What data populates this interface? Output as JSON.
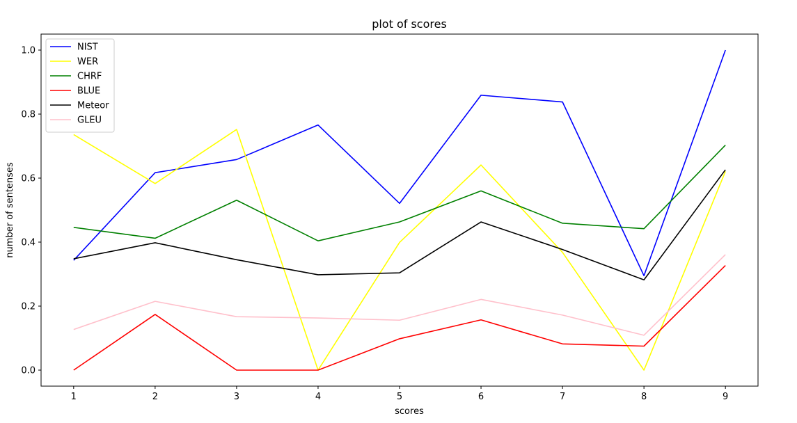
{
  "chart_data": {
    "type": "line",
    "title": "plot of scores",
    "xlabel": "scores",
    "ylabel": "number of sentenses",
    "x": [
      1,
      2,
      3,
      4,
      5,
      6,
      7,
      8,
      9
    ],
    "xlim": [
      0.6,
      9.4
    ],
    "ylim": [
      -0.05,
      1.05
    ],
    "xticks": [
      "1",
      "2",
      "3",
      "4",
      "5",
      "6",
      "7",
      "8",
      "9"
    ],
    "yticks": [
      "0.0",
      "0.2",
      "0.4",
      "0.6",
      "0.8",
      "1.0"
    ],
    "grid": false,
    "legend_position": "top-left",
    "series": [
      {
        "name": "NIST",
        "color": "#0000ff",
        "values": [
          0.343,
          0.617,
          0.658,
          0.766,
          0.521,
          0.859,
          0.838,
          0.295,
          1.0
        ]
      },
      {
        "name": "WER",
        "color": "#ffff00",
        "values": [
          0.736,
          0.583,
          0.752,
          0.0,
          0.399,
          0.641,
          0.368,
          0.0,
          0.621
        ]
      },
      {
        "name": "CHRF",
        "color": "#008000",
        "values": [
          0.446,
          0.412,
          0.531,
          0.404,
          0.463,
          0.56,
          0.459,
          0.442,
          0.703
        ]
      },
      {
        "name": "BLUE",
        "color": "#ff0000",
        "values": [
          0.0,
          0.174,
          0.0,
          0.0,
          0.098,
          0.157,
          0.082,
          0.075,
          0.327
        ]
      },
      {
        "name": "Meteor",
        "color": "#000000",
        "values": [
          0.348,
          0.398,
          0.345,
          0.298,
          0.304,
          0.463,
          0.377,
          0.282,
          0.626
        ]
      },
      {
        "name": "GLEU",
        "color": "#ffc0cb",
        "values": [
          0.127,
          0.215,
          0.167,
          0.163,
          0.156,
          0.221,
          0.172,
          0.109,
          0.361
        ]
      }
    ]
  }
}
